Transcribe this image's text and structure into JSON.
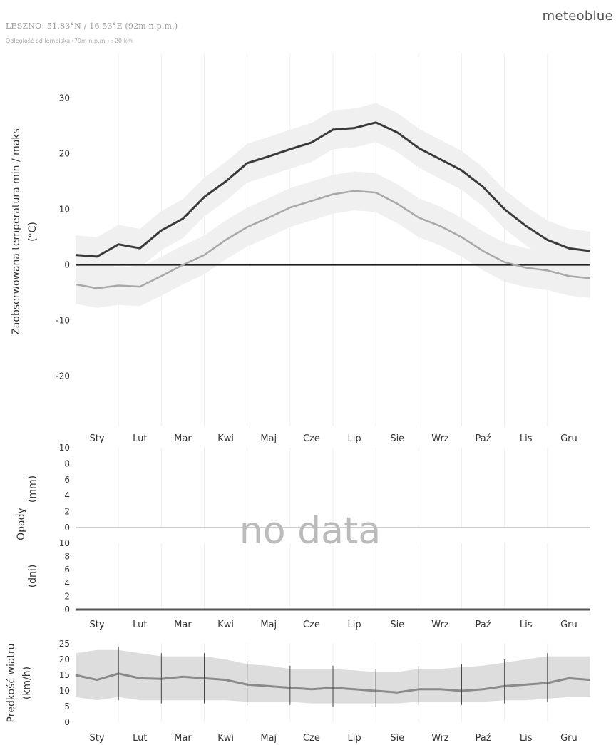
{
  "header": {
    "station": "LESZNO: 51.83°N / 16.53°E (92m n.p.m.)",
    "distance": "Odległość od lembiska (79m n.p.m.) : 20 km",
    "brand": "meteoblue"
  },
  "chart_data": [
    {
      "type": "line",
      "id": "temperature",
      "ylabel": "Zaobserwowana temperatura min / maks (°C)",
      "ylim": [
        -29,
        38
      ],
      "yticks": [
        30,
        20,
        10,
        0,
        -10,
        -20
      ],
      "categories": [
        "Sty",
        "Lut",
        "Mar",
        "Kwi",
        "Maj",
        "Cze",
        "Lip",
        "Sie",
        "Wrz",
        "Paź",
        "Lis",
        "Gru"
      ],
      "x": [
        0,
        0.5,
        1,
        1.5,
        2,
        2.5,
        3,
        3.5,
        4,
        4.5,
        5,
        5.5,
        6,
        6.5,
        7,
        7.5,
        8,
        8.5,
        9,
        9.5,
        10,
        10.5,
        11,
        11.5,
        12
      ],
      "series": [
        {
          "values": [
            1.8,
            1.5,
            3.7,
            3.0,
            6.2,
            8.3,
            12.2,
            15.0,
            18.3,
            19.5,
            20.8,
            22.0,
            24.3,
            24.6,
            25.6,
            23.8,
            21.0,
            19.0,
            17.0,
            14.0,
            10.0,
            7.0,
            4.5,
            3.0,
            2.5
          ],
          "color": "#3a3a3a"
        },
        {
          "values": [
            -3.5,
            -4.2,
            -3.7,
            -3.9,
            -2.0,
            0.0,
            1.8,
            4.5,
            6.8,
            8.5,
            10.3,
            11.5,
            12.7,
            13.3,
            13.0,
            11.0,
            8.5,
            7.0,
            5.0,
            2.5,
            0.5,
            -0.5,
            -1.0,
            -2.0,
            -2.4
          ],
          "color": "#a8a8a8"
        }
      ]
    },
    {
      "type": "bar",
      "id": "precip_mm",
      "ylabel": "Opady (mm)",
      "ylim": [
        0,
        10
      ],
      "yticks": [
        10,
        8,
        6,
        4,
        2,
        0
      ],
      "annotation": "no data"
    },
    {
      "type": "bar",
      "id": "precip_days",
      "ylabel": "(dni)",
      "ylim": [
        0,
        10
      ],
      "yticks": [
        10,
        8,
        6,
        4,
        2,
        0
      ],
      "categories": [
        "Sty",
        "Lut",
        "Mar",
        "Kwi",
        "Maj",
        "Cze",
        "Lip",
        "Sie",
        "Wrz",
        "Paź",
        "Lis",
        "Gru"
      ]
    },
    {
      "type": "line",
      "id": "wind",
      "ylabel": "Prędkość wiatru (km/h)",
      "ylim": [
        0,
        25
      ],
      "yticks": [
        25,
        20,
        15,
        10,
        5,
        0
      ],
      "categories": [
        "Sty",
        "Lut",
        "Mar",
        "Kwi",
        "Maj",
        "Cze",
        "Lip",
        "Sie",
        "Wrz",
        "Paź",
        "Lis",
        "Gru"
      ],
      "x": [
        0,
        0.5,
        1,
        1.5,
        2,
        2.5,
        3,
        3.5,
        4,
        4.5,
        5,
        5.5,
        6,
        6.5,
        7,
        7.5,
        8,
        8.5,
        9,
        9.5,
        10,
        10.5,
        11,
        11.5,
        12
      ],
      "series": [
        {
          "values": [
            15,
            13.5,
            15.5,
            14,
            13.8,
            14.5,
            14,
            13.5,
            12,
            11.5,
            11,
            10.5,
            11,
            10.5,
            10,
            9.5,
            10.5,
            10.5,
            10,
            10.5,
            11.5,
            12,
            12.5,
            14,
            13.5
          ],
          "color": "#8a8a8a"
        }
      ],
      "band_low": [
        8,
        7,
        8,
        7,
        7,
        7,
        7,
        7,
        6.5,
        6.5,
        6.5,
        6,
        6,
        6,
        6,
        6,
        6.5,
        6.5,
        6.5,
        6.5,
        7,
        7,
        7.5,
        8,
        8
      ],
      "band_high": [
        22,
        23,
        23,
        22,
        21,
        21,
        21,
        20,
        18.5,
        18,
        17,
        17,
        17,
        16.5,
        16,
        16,
        17,
        17,
        17.5,
        18,
        19,
        20,
        21,
        21,
        21
      ]
    }
  ]
}
